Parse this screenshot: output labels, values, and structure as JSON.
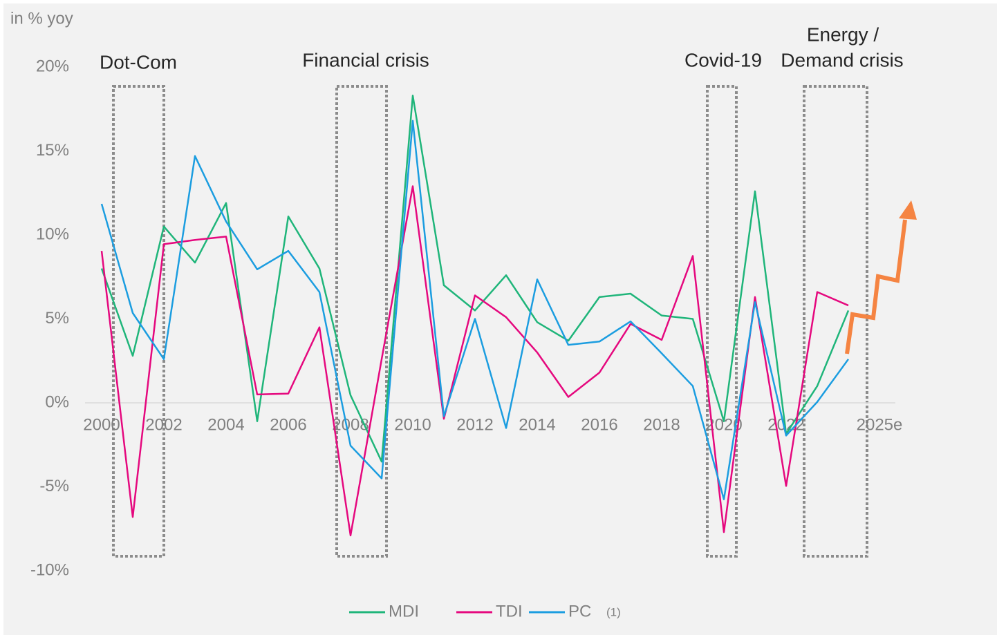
{
  "chart_data": {
    "type": "line",
    "y_label": "in % yoy",
    "annotations": [
      "Dot-Com",
      "Financial crisis",
      "Covid-19",
      "Energy /",
      "Demand crisis"
    ],
    "legend_note": "(1)",
    "categories": [
      "2000",
      null,
      "2002",
      null,
      "2004",
      null,
      "2006",
      null,
      "2008",
      null,
      "2010",
      null,
      "2012",
      null,
      "2014",
      null,
      "2016",
      null,
      "2018",
      null,
      "2020",
      null,
      "2022",
      null,
      null,
      "2025e"
    ],
    "series": [
      {
        "name": "MDI",
        "color": "#1fb57a",
        "values": [
          8.0,
          2.8,
          10.5,
          8.35,
          11.9,
          -1.1,
          11.1,
          8.0,
          0.45,
          -3.5,
          18.3,
          7.0,
          5.5,
          7.6,
          4.8,
          3.7,
          6.3,
          6.5,
          5.2,
          5.0,
          -1.1,
          12.6,
          -1.85,
          1.0,
          5.5,
          null
        ]
      },
      {
        "name": "TDI",
        "color": "#e5087e",
        "values": [
          9.05,
          -6.8,
          9.45,
          9.7,
          9.9,
          0.5,
          0.55,
          4.5,
          -7.9,
          2.6,
          12.9,
          -0.95,
          6.4,
          5.1,
          3.0,
          0.35,
          1.8,
          4.7,
          3.75,
          8.75,
          -7.7,
          6.3,
          -4.95,
          6.6,
          5.8,
          null
        ]
      },
      {
        "name": "PC",
        "color": "#1b9de0",
        "values": [
          11.85,
          5.35,
          2.6,
          14.7,
          10.8,
          7.95,
          9.05,
          6.6,
          -2.55,
          -4.5,
          16.8,
          -0.8,
          5.0,
          -1.5,
          7.35,
          3.45,
          3.65,
          4.85,
          2.95,
          1.0,
          -5.75,
          6.0,
          -1.95,
          0.05,
          2.6,
          null
        ]
      }
    ],
    "ylim": [
      -10,
      20
    ],
    "yticks": [
      {
        "value": -10,
        "label": "-10%"
      },
      {
        "value": -5,
        "label": "-5%"
      },
      {
        "value": 0,
        "label": "0%"
      },
      {
        "value": 5,
        "label": "5%"
      },
      {
        "value": 10,
        "label": "10%"
      },
      {
        "value": 15,
        "label": "15%"
      },
      {
        "value": 20,
        "label": "20%"
      }
    ],
    "grid": false
  }
}
